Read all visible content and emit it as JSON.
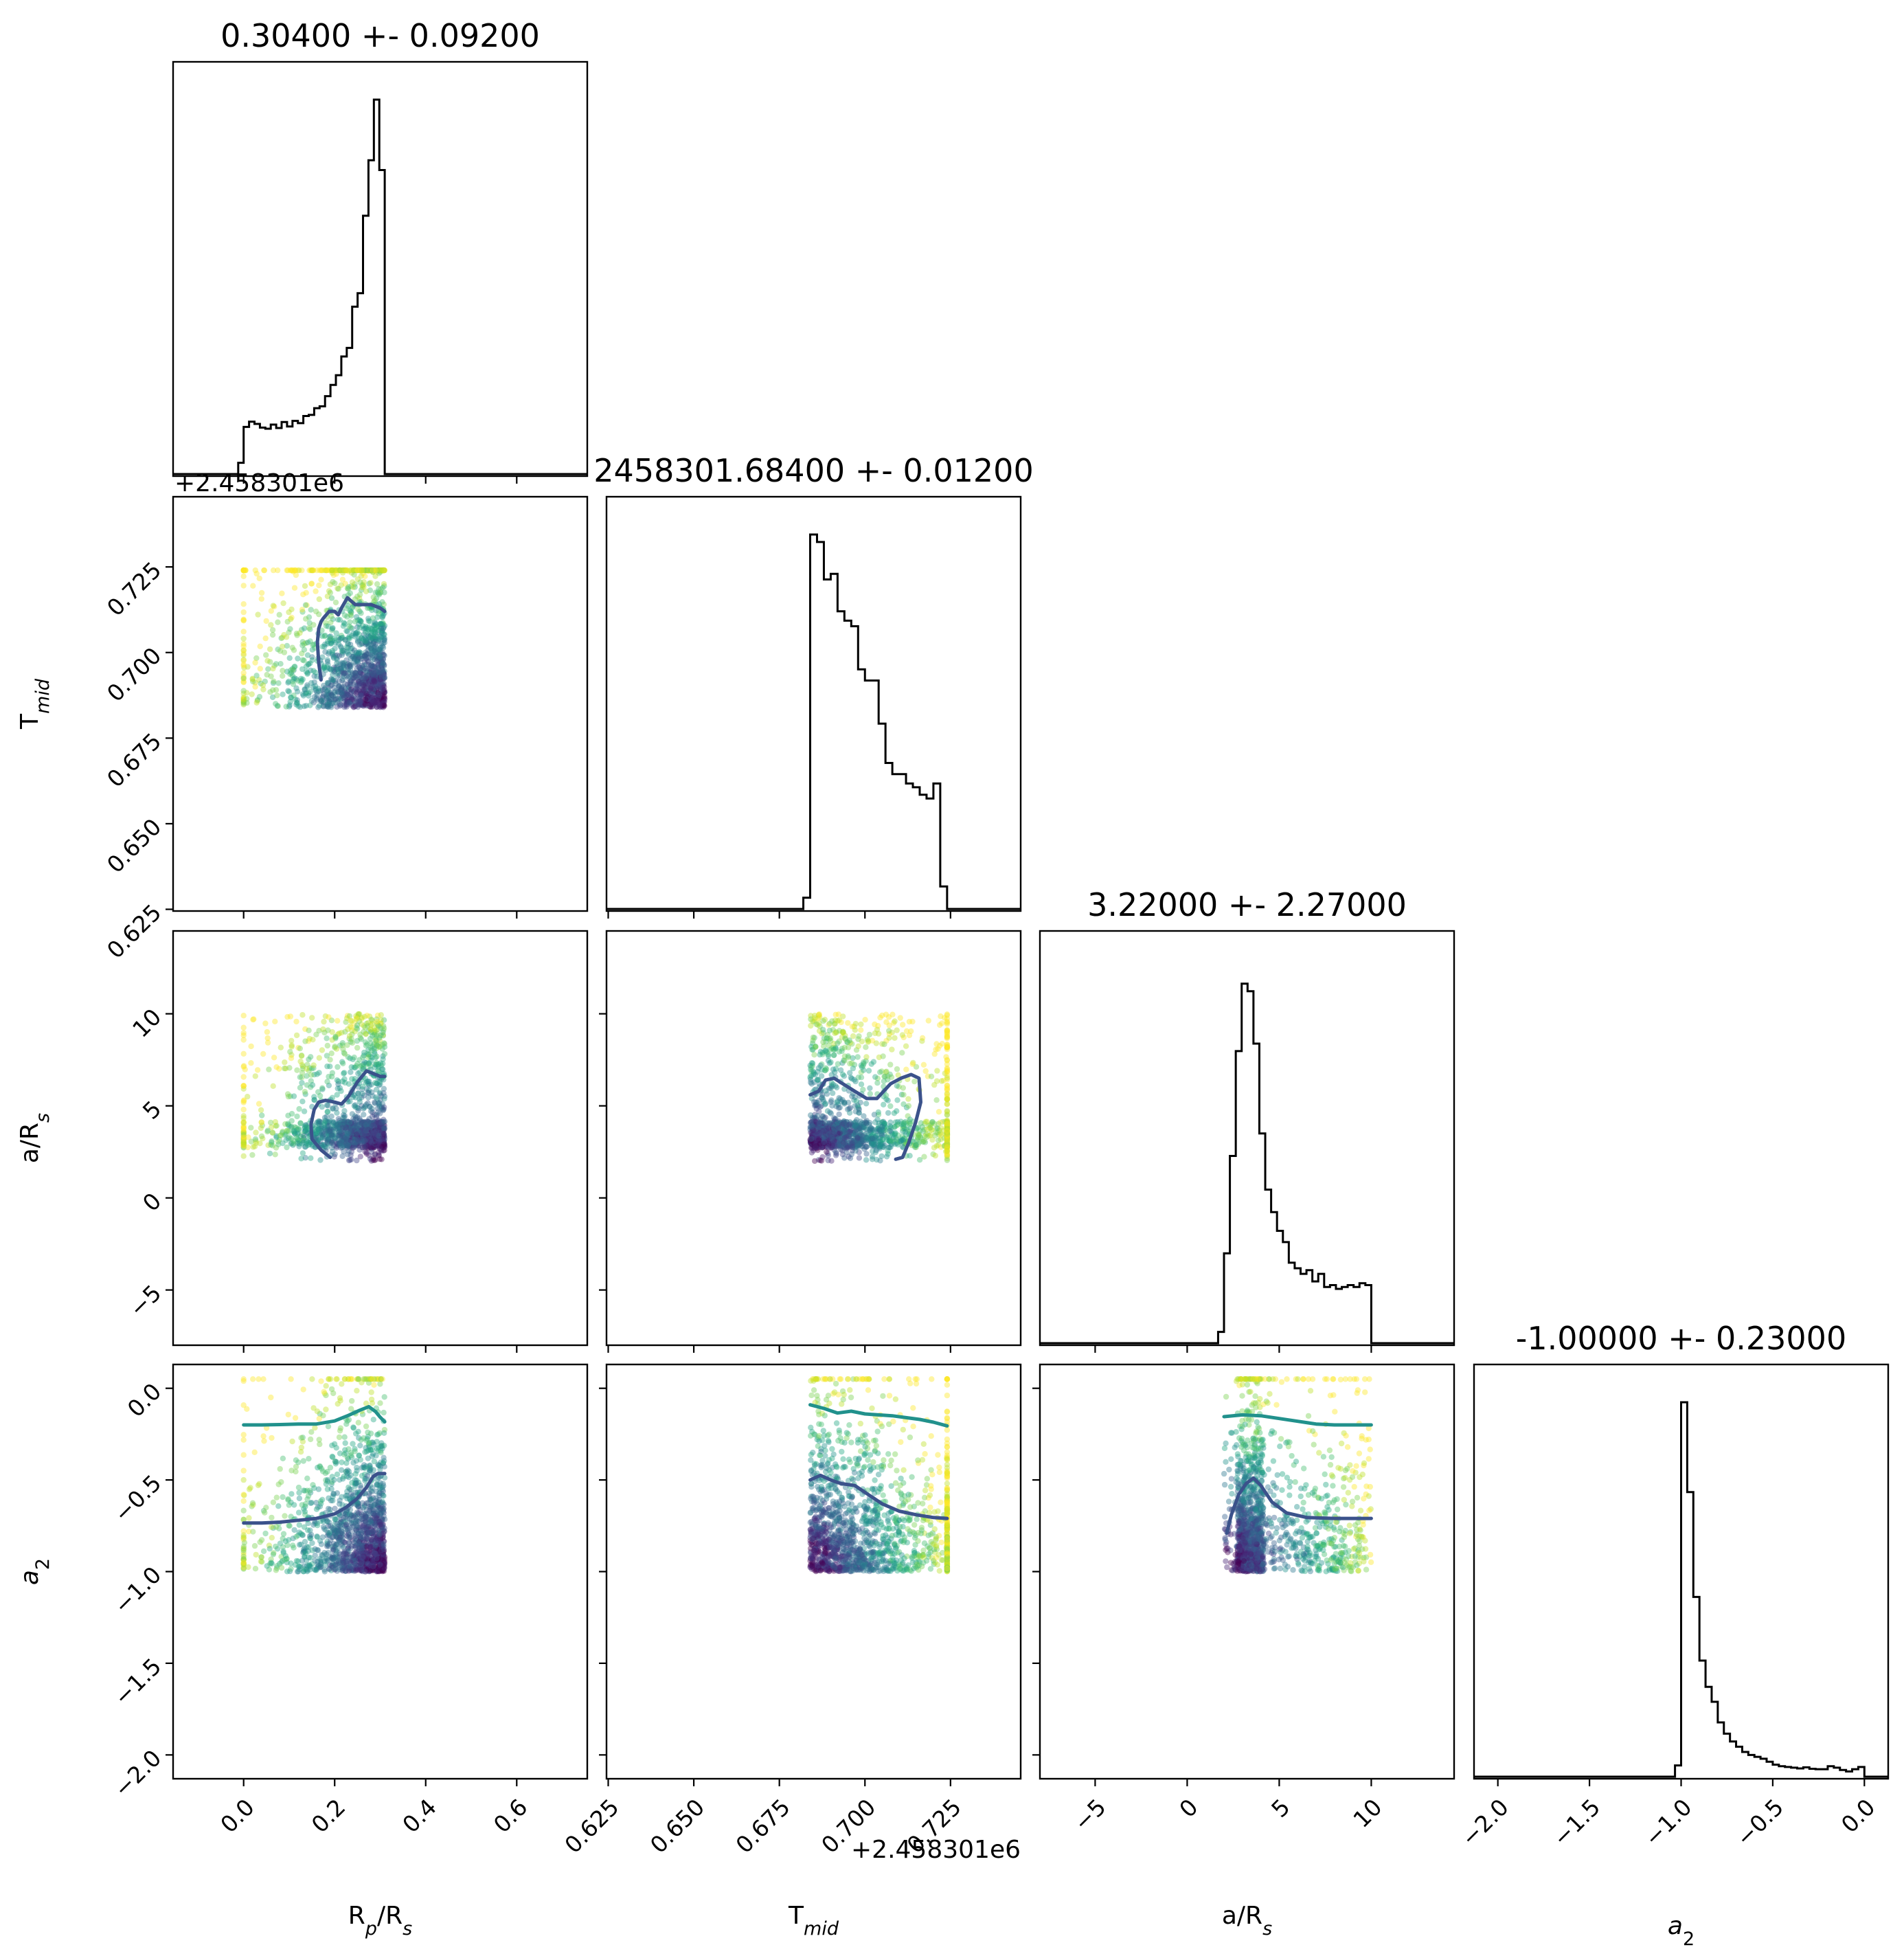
{
  "chart_data": {
    "type": "corner",
    "parameters": [
      {
        "key": "rp",
        "label_main": "R",
        "label_sub1": "p",
        "label_mid": "/R",
        "label_sub2": "s",
        "title": "0.30400 +- 0.09200",
        "range": [
          -0.155,
          0.755
        ],
        "ticks": [
          0.0,
          0.2,
          0.4,
          0.6
        ],
        "tick_labels": [
          "0.0",
          "0.2",
          "0.4",
          "0.6"
        ],
        "offset_text": "",
        "hist_edges": [
          0.0,
          0.31
        ],
        "hist_values": [
          0.126,
          0.14,
          0.134,
          0.124,
          0.121,
          0.132,
          0.123,
          0.139,
          0.127,
          0.142,
          0.136,
          0.155,
          0.158,
          0.176,
          0.181,
          0.208,
          0.238,
          0.264,
          0.314,
          0.337,
          0.447,
          0.483,
          0.69,
          0.838,
          1.0,
          0.812
        ]
      },
      {
        "key": "tmid",
        "label_main": "T",
        "label_sub1": "mid",
        "label_mid": "",
        "label_sub2": "",
        "title": "2458301.68400 +- 0.01200",
        "range": [
          2458301.6245,
          2458301.7455
        ],
        "ticks": [
          2458301.625,
          2458301.65,
          2458301.675,
          2458301.7,
          2458301.725
        ],
        "tick_labels": [
          "0.625",
          "0.650",
          "0.675",
          "0.700",
          "0.725"
        ],
        "offset_text": "+2.458301e6",
        "hist_edges": [
          2458301.684,
          2458301.724
        ],
        "hist_values": [
          1.0,
          0.98,
          0.88,
          0.895,
          0.795,
          0.77,
          0.755,
          0.64,
          0.61,
          0.61,
          0.495,
          0.39,
          0.36,
          0.36,
          0.335,
          0.325,
          0.305,
          0.295,
          0.335,
          0.06
        ]
      },
      {
        "key": "ars",
        "label_main": "a/R",
        "label_sub1": "s",
        "label_mid": "",
        "label_sub2": "",
        "title": "3.22000 +- 2.27000",
        "range": [
          -8.0,
          14.5
        ],
        "ticks": [
          -5,
          0,
          5,
          10
        ],
        "tick_labels": [
          "−5",
          "0",
          "5",
          "10"
        ],
        "offset_text": "",
        "hist_edges": [
          2.0,
          10.0
        ],
        "hist_values": [
          0.24,
          0.5,
          0.78,
          0.96,
          0.94,
          0.8,
          0.56,
          0.41,
          0.35,
          0.3,
          0.27,
          0.215,
          0.2,
          0.185,
          0.195,
          0.165,
          0.185,
          0.15,
          0.155,
          0.145,
          0.15,
          0.155,
          0.15,
          0.16,
          0.155
        ]
      },
      {
        "key": "a2",
        "label_main": "a",
        "label_sub1": "2",
        "label_mid": "",
        "label_sub2": "",
        "title": "-1.00000 +- 0.23000",
        "range": [
          -2.13,
          0.13
        ],
        "ticks": [
          -2.0,
          -1.5,
          -1.0,
          -0.5,
          0.0
        ],
        "tick_labels": [
          "−2.0",
          "−1.5",
          "−1.0",
          "−0.5",
          "0.0"
        ],
        "offset_text": "",
        "hist_edges": [
          -1.0,
          0.0
        ],
        "hist_values": [
          1.0,
          0.76,
          0.48,
          0.31,
          0.24,
          0.2,
          0.145,
          0.115,
          0.094,
          0.08,
          0.066,
          0.058,
          0.053,
          0.048,
          0.04,
          0.032,
          0.028,
          0.026,
          0.024,
          0.022,
          0.025,
          0.021,
          0.02,
          0.02,
          0.028,
          0.024,
          0.018,
          0.014,
          0.02,
          0.026
        ]
      }
    ],
    "sample_box": {
      "rp": [
        0.0,
        0.31
      ],
      "tmid": [
        2458301.684,
        2458301.724
      ],
      "ars": [
        2.0,
        10.0
      ],
      "a2": [
        -1.0,
        0.05
      ]
    },
    "contours": [
      {
        "xkey": "rp",
        "ykey": "tmid",
        "color": "#3b528b",
        "x": [
          0.17,
          0.165,
          0.162,
          0.165,
          0.17,
          0.175,
          0.188,
          0.2,
          0.208,
          0.215,
          0.228,
          0.245,
          0.26,
          0.28,
          0.3,
          0.31
        ],
        "y": [
          2458301.692,
          2458301.697,
          2458301.703,
          2458301.707,
          2458301.709,
          2458301.71,
          2458301.712,
          2458301.712,
          2458301.711,
          2458301.713,
          2458301.716,
          2458301.714,
          2458301.714,
          2458301.714,
          2458301.713,
          2458301.712
        ]
      },
      {
        "xkey": "rp",
        "ykey": "ars",
        "color": "#3b528b",
        "x": [
          0.19,
          0.17,
          0.15,
          0.148,
          0.155,
          0.165,
          0.18,
          0.2,
          0.215,
          0.23,
          0.25,
          0.27,
          0.3,
          0.31
        ],
        "y": [
          2.2,
          2.6,
          3.2,
          4.0,
          4.8,
          5.2,
          5.3,
          5.2,
          5.1,
          5.5,
          6.3,
          6.9,
          6.6,
          6.6
        ]
      },
      {
        "xkey": "tmid",
        "ykey": "ars",
        "color": "#3b528b",
        "x": [
          2458301.684,
          2458301.6865,
          2458301.6885,
          2458301.691,
          2458301.6935,
          2458301.697,
          2458301.7005,
          2458301.7035,
          2458301.7075,
          2458301.7105,
          2458301.7135,
          2458301.7158,
          2458301.7163,
          2458301.7148,
          2458301.7128,
          2458301.711,
          2458301.709
        ],
        "y": [
          5.6,
          5.8,
          6.4,
          6.5,
          6.2,
          5.8,
          5.4,
          5.4,
          6.2,
          6.5,
          6.7,
          6.5,
          5.2,
          4.1,
          3.0,
          2.2,
          2.1
        ]
      },
      {
        "xkey": "rp",
        "ykey": "a2",
        "color": "#21918c",
        "x": [
          0.0,
          0.04,
          0.08,
          0.12,
          0.16,
          0.2,
          0.23,
          0.255,
          0.275,
          0.29,
          0.3,
          0.31
        ],
        "y": [
          -0.2,
          -0.2,
          -0.198,
          -0.195,
          -0.195,
          -0.178,
          -0.148,
          -0.12,
          -0.1,
          -0.128,
          -0.158,
          -0.183
        ]
      },
      {
        "xkey": "rp",
        "ykey": "a2",
        "color": "#3b528b",
        "x": [
          0.0,
          0.04,
          0.08,
          0.12,
          0.16,
          0.2,
          0.225,
          0.25,
          0.27,
          0.285,
          0.295,
          0.31
        ],
        "y": [
          -0.735,
          -0.735,
          -0.73,
          -0.72,
          -0.71,
          -0.685,
          -0.65,
          -0.6,
          -0.54,
          -0.48,
          -0.465,
          -0.465
        ]
      },
      {
        "xkey": "tmid",
        "ykey": "a2",
        "color": "#21918c",
        "x": [
          2458301.684,
          2458301.688,
          2458301.692,
          2458301.696,
          2458301.7,
          2458301.704,
          2458301.708,
          2458301.712,
          2458301.716,
          2458301.72,
          2458301.724
        ],
        "y": [
          -0.09,
          -0.11,
          -0.135,
          -0.125,
          -0.14,
          -0.145,
          -0.15,
          -0.16,
          -0.17,
          -0.185,
          -0.205
        ]
      },
      {
        "xkey": "tmid",
        "ykey": "a2",
        "color": "#3b528b",
        "x": [
          2458301.684,
          2458301.687,
          2458301.69,
          2458301.693,
          2458301.697,
          2458301.701,
          2458301.705,
          2458301.71,
          2458301.715,
          2458301.72,
          2458301.724
        ],
        "y": [
          -0.5,
          -0.475,
          -0.5,
          -0.52,
          -0.53,
          -0.58,
          -0.63,
          -0.67,
          -0.69,
          -0.705,
          -0.71
        ]
      },
      {
        "xkey": "ars",
        "ykey": "a2",
        "color": "#21918c",
        "x": [
          2.0,
          3.0,
          4.0,
          5.0,
          6.0,
          7.0,
          8.0,
          9.0,
          10.0
        ],
        "y": [
          -0.155,
          -0.145,
          -0.15,
          -0.165,
          -0.18,
          -0.195,
          -0.2,
          -0.2,
          -0.2
        ]
      },
      {
        "xkey": "ars",
        "ykey": "a2",
        "color": "#3b528b",
        "x": [
          2.15,
          2.4,
          2.8,
          3.2,
          3.6,
          4.0,
          4.6,
          5.4,
          6.5,
          8.0,
          10.0
        ],
        "y": [
          -0.79,
          -0.69,
          -0.58,
          -0.52,
          -0.49,
          -0.53,
          -0.62,
          -0.68,
          -0.705,
          -0.71,
          -0.71
        ]
      }
    ]
  }
}
